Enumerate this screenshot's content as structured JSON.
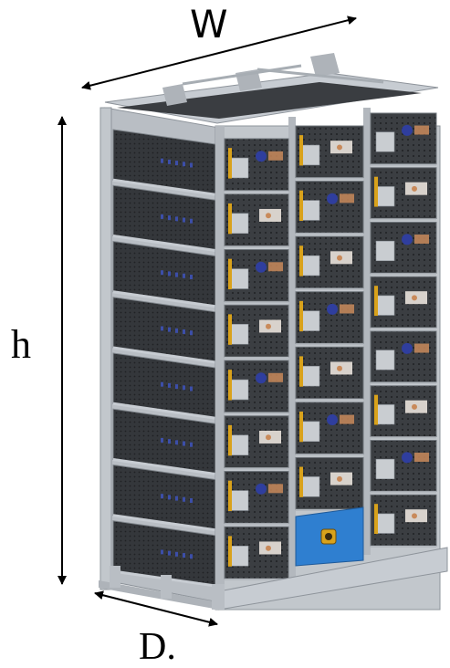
{
  "dimensions": {
    "width_label": "W",
    "height_label": "h",
    "depth_label": "D."
  },
  "rack": {
    "front_columns": 3,
    "rows_per_column": 8,
    "side_modules": 8,
    "control_box_present": true
  },
  "colors": {
    "frame": "#b9bec4",
    "frame_dark": "#8e949b",
    "module_body": "#3a3d41",
    "module_grill": "#2a2c2f",
    "side_panel": "#34373b",
    "handle": "#d9a21b",
    "connector_blue": "#2f3e9e",
    "terminal_copper": "#c98a5a",
    "label_plate": "#c9cdd1",
    "control_box": "#2f7fd0",
    "arrow": "#000000"
  }
}
